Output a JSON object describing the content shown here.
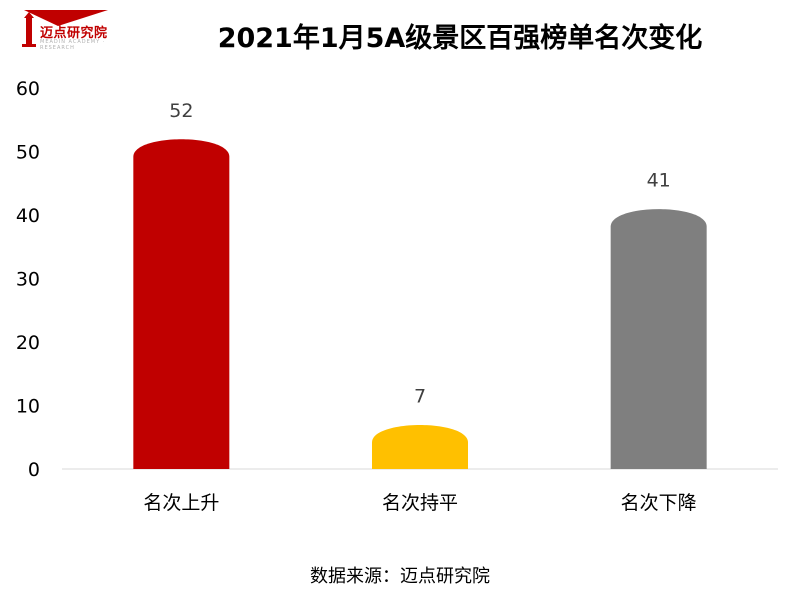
{
  "header": {
    "logo_text": "迈点研究院",
    "logo_sub": "MEADIN ACADEMY · RESEARCH",
    "title": "2021年1月5A级景区百强榜单名次变化"
  },
  "footer": {
    "source": "数据来源：迈点研究院"
  },
  "colors": {
    "logo_red": "#c00000"
  },
  "chart_data": {
    "type": "bar",
    "title": "2021年1月5A级景区百强榜单名次变化",
    "categories": [
      "名次上升",
      "名次持平",
      "名次下降"
    ],
    "values": [
      52,
      7,
      41
    ],
    "colors": [
      "#c00000",
      "#ffc000",
      "#7f7f7f"
    ],
    "ylim": [
      0,
      60
    ],
    "yticks": [
      0,
      10,
      20,
      30,
      40,
      50,
      60
    ],
    "xlabel": "",
    "ylabel": "",
    "grid": false,
    "data_labels": true
  }
}
